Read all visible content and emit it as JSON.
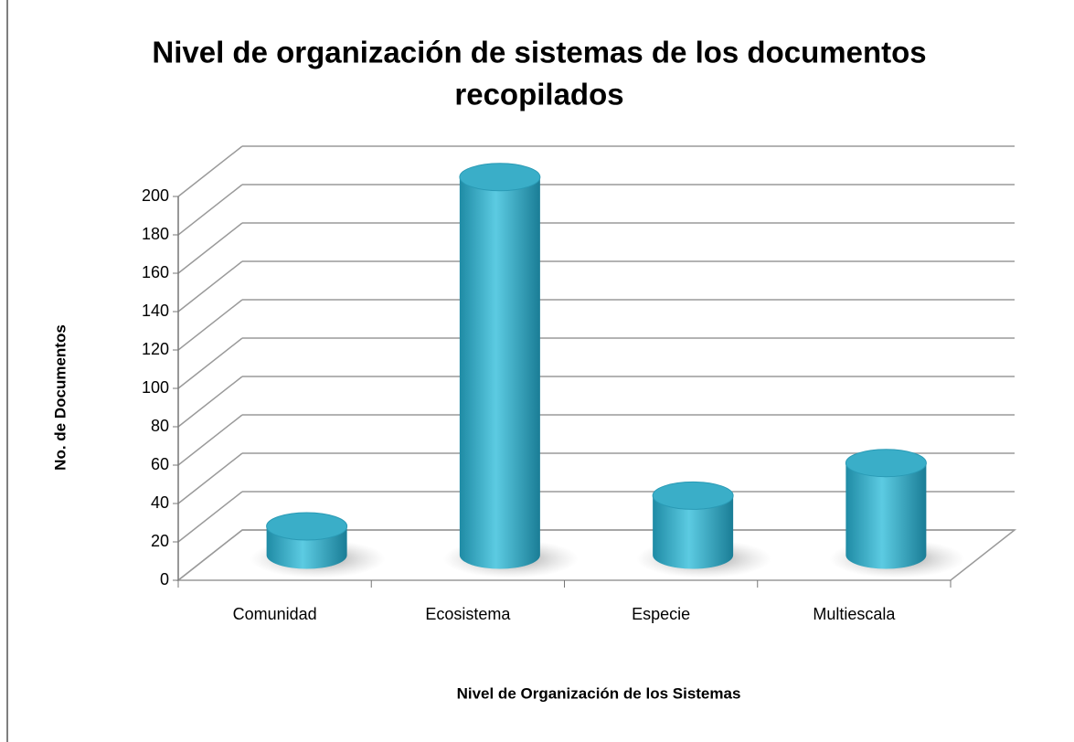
{
  "chart_data": {
    "type": "bar3d",
    "title": [
      "Nivel de organización de sistemas de los documentos",
      "recopilados"
    ],
    "x_label": "Nivel de Organización  de los Sistemas",
    "y_label": "No. de Documentos",
    "categories": [
      "Comunidad",
      "Ecosistema",
      "Especie",
      "Multiescala"
    ],
    "values": [
      15,
      197,
      31,
      48
    ],
    "color": "#3aaec8",
    "ylim": [
      0,
      200
    ],
    "yticks": [
      0,
      20,
      40,
      60,
      80,
      100,
      120,
      140,
      160,
      180,
      200
    ],
    "grid": true
  }
}
